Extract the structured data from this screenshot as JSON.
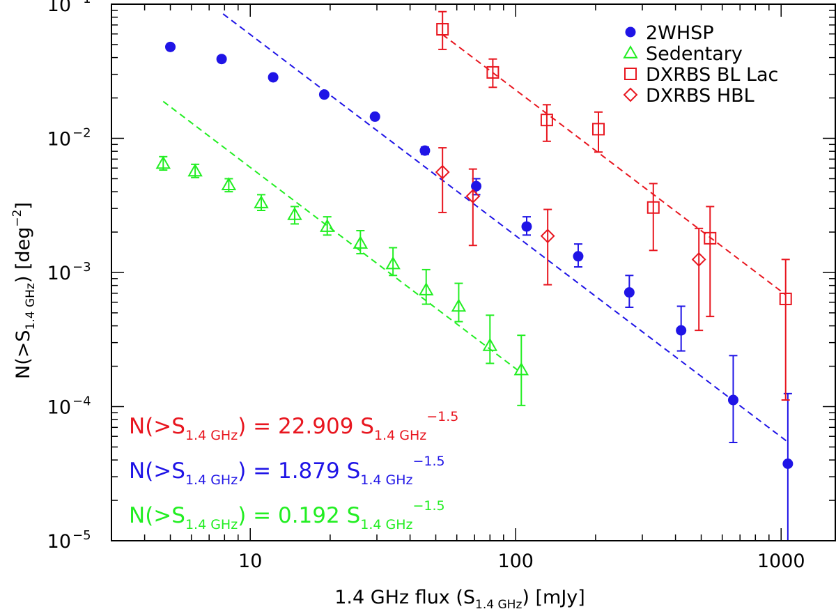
{
  "chart_data": {
    "type": "scatter",
    "xscale": "log",
    "yscale": "log",
    "xlim": [
      3.0,
      1600
    ],
    "ylim": [
      1e-05,
      0.1
    ],
    "xlabel": {
      "pre": "1.4 GHz flux (S",
      "sub": "1.4 GHz",
      "post": ") [mJy]"
    },
    "ylabel": {
      "pre": "N(>S",
      "sub": "1.4 GHz",
      "mid": ")  [deg",
      "sup": "−2",
      "post": "]"
    },
    "x_ticks": [
      {
        "value": 10,
        "label": "10"
      },
      {
        "value": 100,
        "label": "100"
      },
      {
        "value": 1000,
        "label": "1000"
      }
    ],
    "y_ticks": [
      {
        "value": 1e-05,
        "base": "10",
        "exp": "−5"
      },
      {
        "value": 0.0001,
        "base": "10",
        "exp": "−4"
      },
      {
        "value": 0.001,
        "base": "10",
        "exp": "−3"
      },
      {
        "value": 0.01,
        "base": "10",
        "exp": "−2"
      },
      {
        "value": 0.1,
        "base": "10",
        "exp": "−1"
      }
    ],
    "legend_position": "top-right",
    "series": [
      {
        "name": "2WHSP",
        "marker": "filled-circle",
        "color": "#1f14e6",
        "points": [
          {
            "x": 5.0,
            "y": 0.048,
            "lo": 0.048,
            "hi": 0.048
          },
          {
            "x": 7.8,
            "y": 0.039,
            "lo": 0.039,
            "hi": 0.039
          },
          {
            "x": 12.2,
            "y": 0.0285,
            "lo": 0.0285,
            "hi": 0.0285
          },
          {
            "x": 19.0,
            "y": 0.0212,
            "lo": 0.0212,
            "hi": 0.0212
          },
          {
            "x": 29.5,
            "y": 0.0145,
            "lo": 0.0145,
            "hi": 0.0145
          },
          {
            "x": 45.5,
            "y": 0.0081,
            "lo": 0.0076,
            "hi": 0.0086
          },
          {
            "x": 71.0,
            "y": 0.0044,
            "lo": 0.0038,
            "hi": 0.005
          },
          {
            "x": 110,
            "y": 0.0022,
            "lo": 0.0019,
            "hi": 0.0026
          },
          {
            "x": 172,
            "y": 0.00132,
            "lo": 0.0011,
            "hi": 0.00163
          },
          {
            "x": 268,
            "y": 0.00071,
            "lo": 0.00055,
            "hi": 0.00095
          },
          {
            "x": 420,
            "y": 0.00037,
            "lo": 0.00026,
            "hi": 0.00056
          },
          {
            "x": 660,
            "y": 0.000112,
            "lo": 5.4e-05,
            "hi": 0.00024
          },
          {
            "x": 1060,
            "y": 3.75e-05,
            "lo": 1e-05,
            "hi": 0.000125
          }
        ]
      },
      {
        "name": "Sedentary",
        "marker": "open-triangle",
        "color": "#22ee22",
        "points": [
          {
            "x": 4.7,
            "y": 0.0065,
            "lo": 0.0058,
            "hi": 0.0073
          },
          {
            "x": 6.2,
            "y": 0.0057,
            "lo": 0.0051,
            "hi": 0.0064
          },
          {
            "x": 8.3,
            "y": 0.0045,
            "lo": 0.004,
            "hi": 0.005
          },
          {
            "x": 11.0,
            "y": 0.0033,
            "lo": 0.0029,
            "hi": 0.0038
          },
          {
            "x": 14.7,
            "y": 0.0027,
            "lo": 0.0023,
            "hi": 0.0031
          },
          {
            "x": 19.5,
            "y": 0.0022,
            "lo": 0.0019,
            "hi": 0.0026
          },
          {
            "x": 26.0,
            "y": 0.00165,
            "lo": 0.00138,
            "hi": 0.00205
          },
          {
            "x": 34.5,
            "y": 0.00116,
            "lo": 0.00095,
            "hi": 0.00153
          },
          {
            "x": 46.0,
            "y": 0.00074,
            "lo": 0.00058,
            "hi": 0.00105
          },
          {
            "x": 61.0,
            "y": 0.00056,
            "lo": 0.00043,
            "hi": 0.00083
          },
          {
            "x": 80.0,
            "y": 0.000285,
            "lo": 0.00021,
            "hi": 0.00048
          },
          {
            "x": 105,
            "y": 0.000188,
            "lo": 0.000102,
            "hi": 0.00034
          }
        ]
      },
      {
        "name": "DXRBS BL Lac",
        "marker": "open-square",
        "color": "#e8161f",
        "points": [
          {
            "x": 53,
            "y": 0.065,
            "lo": 0.046,
            "hi": 0.088
          },
          {
            "x": 82,
            "y": 0.031,
            "lo": 0.024,
            "hi": 0.039
          },
          {
            "x": 131,
            "y": 0.0137,
            "lo": 0.0095,
            "hi": 0.0178
          },
          {
            "x": 205,
            "y": 0.0117,
            "lo": 0.0079,
            "hi": 0.0157
          },
          {
            "x": 330,
            "y": 0.00305,
            "lo": 0.00146,
            "hi": 0.0046
          },
          {
            "x": 540,
            "y": 0.0018,
            "lo": 0.00047,
            "hi": 0.0031
          },
          {
            "x": 1040,
            "y": 0.000635,
            "lo": 0.000112,
            "hi": 0.00125
          }
        ]
      },
      {
        "name": "DXRBS HBL",
        "marker": "open-diamond",
        "color": "#e8161f",
        "points": [
          {
            "x": 53,
            "y": 0.0056,
            "lo": 0.0028,
            "hi": 0.0085
          },
          {
            "x": 69,
            "y": 0.0037,
            "lo": 0.00159,
            "hi": 0.0059
          },
          {
            "x": 132,
            "y": 0.00187,
            "lo": 0.00081,
            "hi": 0.00295
          },
          {
            "x": 490,
            "y": 0.00125,
            "lo": 0.00037,
            "hi": 0.00213
          }
        ]
      }
    ],
    "fit_lines": [
      {
        "color": "#e8161f",
        "coef": 22.909,
        "exp": -1.5,
        "x_range": [
          53,
          1040
        ]
      },
      {
        "color": "#1f14e6",
        "coef": 1.879,
        "exp": -1.5,
        "x_range": [
          7.9,
          1060
        ]
      },
      {
        "color": "#22ee22",
        "coef": 0.192,
        "exp": -1.5,
        "x_range": [
          4.7,
          105
        ]
      }
    ],
    "annotations": [
      {
        "color": "#e8161f",
        "pre": "N(>S",
        "sub1": "1.4 GHz",
        "mid": ")  =  22.909  S",
        "sub2": "1.4 GHz",
        "sup": "−1.5"
      },
      {
        "color": "#1f14e6",
        "pre": "N(>S",
        "sub1": "1.4 GHz",
        "mid": ")  =  1.879  S",
        "sub2": "1.4 GHz",
        "sup": "−1.5"
      },
      {
        "color": "#22ee22",
        "pre": "N(>S",
        "sub1": "1.4 GHz",
        "mid": ")  =  0.192  S",
        "sub2": "1.4 GHz",
        "sup": "−1.5"
      }
    ]
  }
}
